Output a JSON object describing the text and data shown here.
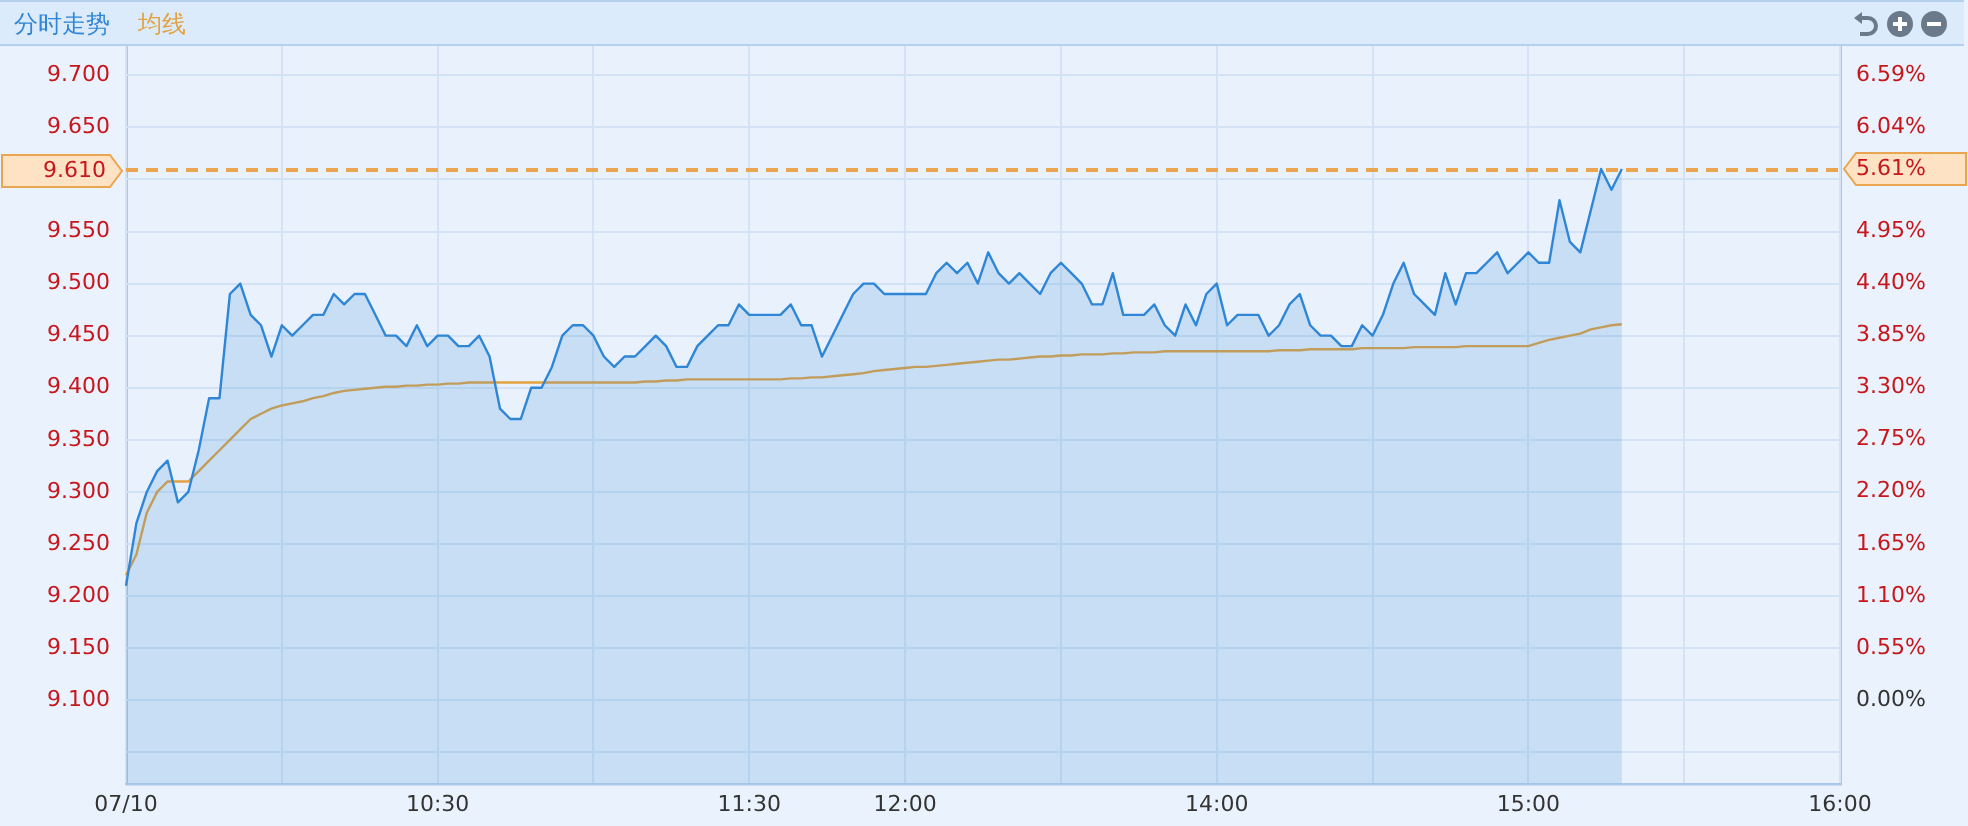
{
  "chart_data": {
    "type": "line",
    "legend": "top left",
    "grid": true,
    "marker": "none",
    "categories": [
      "07/10",
      null,
      null,
      null,
      null,
      null,
      null,
      null,
      null,
      null,
      null,
      null,
      null,
      null,
      null,
      null,
      null,
      null,
      null,
      null,
      null,
      null,
      null,
      null,
      null,
      null,
      null,
      null,
      null,
      null,
      "10:30",
      null,
      null,
      null,
      null,
      null,
      null,
      null,
      null,
      null,
      null,
      null,
      null,
      null,
      null,
      null,
      null,
      null,
      null,
      null,
      null,
      null,
      null,
      null,
      null,
      null,
      null,
      null,
      null,
      null,
      "11:30",
      null,
      null,
      null,
      null,
      null,
      null,
      null,
      null,
      null,
      null,
      null,
      null,
      null,
      null,
      "12:00",
      null,
      null,
      null,
      null,
      null,
      null,
      null,
      null,
      null,
      null,
      null,
      null,
      null,
      null,
      null,
      null,
      null,
      null,
      null,
      null,
      null,
      null,
      null,
      null,
      null,
      null,
      null,
      null,
      null,
      "14:00",
      null,
      null,
      null,
      null,
      null,
      null,
      null,
      null,
      null,
      null,
      null,
      null,
      null,
      null,
      null,
      null,
      null,
      null,
      null,
      null,
      null,
      null,
      null,
      null,
      null,
      null,
      null,
      null,
      null,
      "15:00",
      null,
      null,
      null,
      null,
      null,
      null,
      null,
      null,
      null,
      null,
      null,
      null,
      null,
      null,
      null,
      null,
      null,
      null,
      null,
      null,
      null,
      null,
      null,
      null,
      null,
      null,
      null,
      null,
      null,
      "16:00"
    ],
    "series": [
      {
        "name": "分时走势",
        "type": "area",
        "color": "#2f86d6",
        "values": [
          9.21,
          9.27,
          9.3,
          9.32,
          9.33,
          9.29,
          9.3,
          9.34,
          9.39,
          9.39,
          9.49,
          9.5,
          9.47,
          9.46,
          9.43,
          9.46,
          9.45,
          9.46,
          9.47,
          9.47,
          9.49,
          9.48,
          9.49,
          9.49,
          9.47,
          9.45,
          9.45,
          9.44,
          9.46,
          9.44,
          9.45,
          9.45,
          9.44,
          9.44,
          9.45,
          9.43,
          9.38,
          9.37,
          9.37,
          9.4,
          9.4,
          9.42,
          9.45,
          9.46,
          9.46,
          9.45,
          9.43,
          9.42,
          9.43,
          9.43,
          9.44,
          9.45,
          9.44,
          9.42,
          9.42,
          9.44,
          9.45,
          9.46,
          9.46,
          9.48,
          9.47,
          9.47,
          9.47,
          9.47,
          9.48,
          9.46,
          9.46,
          9.43,
          9.45,
          9.47,
          9.49,
          9.5,
          9.5,
          9.49,
          9.49,
          9.49,
          9.49,
          9.49,
          9.51,
          9.52,
          9.51,
          9.52,
          9.5,
          9.53,
          9.51,
          9.5,
          9.51,
          9.5,
          9.49,
          9.51,
          9.52,
          9.51,
          9.5,
          9.48,
          9.48,
          9.51,
          9.47,
          9.47,
          9.47,
          9.48,
          9.46,
          9.45,
          9.48,
          9.46,
          9.49,
          9.5,
          9.46,
          9.47,
          9.47,
          9.47,
          9.45,
          9.46,
          9.48,
          9.49,
          9.46,
          9.45,
          9.45,
          9.44,
          9.44,
          9.46,
          9.45,
          9.47,
          9.5,
          9.52,
          9.49,
          9.48,
          9.47,
          9.51,
          9.48,
          9.51,
          9.51,
          9.52,
          9.53,
          9.51,
          9.52,
          9.53,
          9.52,
          9.52,
          9.58,
          9.54,
          9.53,
          9.57,
          9.61,
          9.59,
          9.61,
          null,
          null,
          null,
          null,
          null,
          null,
          null,
          null,
          null,
          null,
          null,
          null,
          null,
          null,
          null,
          null,
          null,
          null,
          null,
          null,
          null
        ]
      },
      {
        "name": "均线",
        "type": "line",
        "color": "#e3a23f",
        "values": [
          9.22,
          9.24,
          9.28,
          9.3,
          9.31,
          9.31,
          9.31,
          9.32,
          9.33,
          9.34,
          9.35,
          9.36,
          9.37,
          9.375,
          9.38,
          9.383,
          9.385,
          9.387,
          9.39,
          9.392,
          9.395,
          9.397,
          9.398,
          9.399,
          9.4,
          9.401,
          9.401,
          9.402,
          9.402,
          9.403,
          9.403,
          9.404,
          9.404,
          9.405,
          9.405,
          9.405,
          9.405,
          9.405,
          9.405,
          9.405,
          9.405,
          9.405,
          9.405,
          9.405,
          9.405,
          9.405,
          9.405,
          9.405,
          9.405,
          9.405,
          9.406,
          9.406,
          9.407,
          9.407,
          9.408,
          9.408,
          9.408,
          9.408,
          9.408,
          9.408,
          9.408,
          9.408,
          9.408,
          9.408,
          9.409,
          9.409,
          9.41,
          9.41,
          9.411,
          9.412,
          9.413,
          9.414,
          9.416,
          9.417,
          9.418,
          9.419,
          9.42,
          9.42,
          9.421,
          9.422,
          9.423,
          9.424,
          9.425,
          9.426,
          9.427,
          9.427,
          9.428,
          9.429,
          9.43,
          9.43,
          9.431,
          9.431,
          9.432,
          9.432,
          9.432,
          9.433,
          9.433,
          9.434,
          9.434,
          9.434,
          9.435,
          9.435,
          9.435,
          9.435,
          9.435,
          9.435,
          9.435,
          9.435,
          9.435,
          9.435,
          9.435,
          9.436,
          9.436,
          9.436,
          9.437,
          9.437,
          9.437,
          9.437,
          9.437,
          9.438,
          9.438,
          9.438,
          9.438,
          9.438,
          9.439,
          9.439,
          9.439,
          9.439,
          9.439,
          9.44,
          9.44,
          9.44,
          9.44,
          9.44,
          9.44,
          9.44,
          9.443,
          9.446,
          9.448,
          9.45,
          9.452,
          9.456,
          9.458,
          9.46,
          9.461,
          null,
          null,
          null,
          null,
          null,
          null,
          null,
          null,
          null,
          null,
          null,
          null,
          null,
          null,
          null,
          null,
          null,
          null,
          null,
          null,
          null
        ]
      }
    ],
    "ylim": [
      9.02,
      9.73
    ],
    "yticks": [
      {
        "value": 9.05,
        "label": null
      },
      {
        "value": 9.1,
        "label": "9.100"
      },
      {
        "value": 9.15,
        "label": "9.150"
      },
      {
        "value": 9.2,
        "label": "9.200"
      },
      {
        "value": 9.25,
        "label": "9.250"
      },
      {
        "value": 9.3,
        "label": "9.300"
      },
      {
        "value": 9.35,
        "label": "9.350"
      },
      {
        "value": 9.4,
        "label": "9.400"
      },
      {
        "value": 9.45,
        "label": "9.450"
      },
      {
        "value": 9.5,
        "label": "9.500"
      },
      {
        "value": 9.55,
        "label": "9.550"
      },
      {
        "value": 9.6,
        "label": null
      },
      {
        "value": 9.65,
        "label": "9.650"
      },
      {
        "value": 9.7,
        "label": "9.700"
      }
    ],
    "y2lim": [
      -0.879,
      6.923
    ],
    "y2ticks": [
      {
        "value": 0,
        "label": "0.00%"
      },
      {
        "value": 0.55,
        "label": "0.55%"
      },
      {
        "value": 1.1,
        "label": "1.10%"
      },
      {
        "value": 1.65,
        "label": "1.65%"
      },
      {
        "value": 2.2,
        "label": "2.20%"
      },
      {
        "value": 2.75,
        "label": "2.75%"
      },
      {
        "value": 3.3,
        "label": "3.30%"
      },
      {
        "value": 3.85,
        "label": "3.85%"
      },
      {
        "value": 4.4,
        "label": "4.40%"
      },
      {
        "value": 4.95,
        "label": "4.95%"
      },
      {
        "value": 6.04,
        "label": "6.04%"
      },
      {
        "value": 6.59,
        "label": "6.59%"
      }
    ],
    "ref_lines": [
      {
        "axis": "y",
        "value": 9.61,
        "label": "9.610",
        "color": "#e9a550",
        "line_style": "dashed"
      },
      {
        "axis": "y2",
        "value": 5.61,
        "label": "5.61%",
        "color": "#e9a550",
        "line_style": "dashed"
      }
    ]
  }
}
